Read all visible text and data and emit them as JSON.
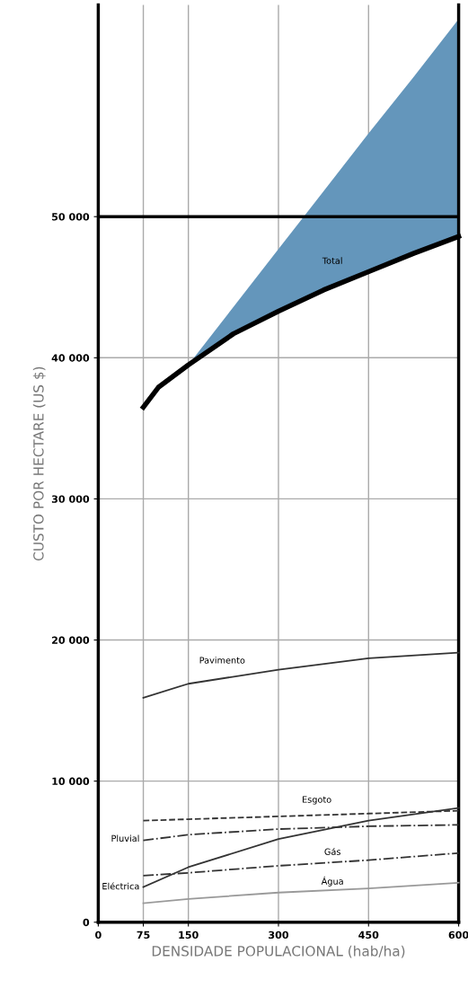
{
  "chart_data": {
    "type": "line",
    "xlabel": "DENSIDADE POPULACIONAL (hab/ha)",
    "ylabel": "CUSTO POR HECTARE (US $)",
    "xlim": [
      0,
      600
    ],
    "xticks": [
      0,
      75,
      150,
      300,
      450,
      600
    ],
    "ylim": [
      0,
      65000
    ],
    "yticks": [
      {
        "value": 0,
        "label": "0"
      },
      {
        "value": 10000,
        "label": "10 000"
      },
      {
        "value": 20000,
        "label": "20 000"
      },
      {
        "value": 30000,
        "label": "30 000"
      },
      {
        "value": 40000,
        "label": "40 000"
      },
      {
        "value": 50000,
        "label": "50 000"
      }
    ],
    "grid": true,
    "marker": "none",
    "series": [
      {
        "type": "area",
        "color": "#6496bb",
        "x": [
          150,
          225,
          300,
          375,
          450,
          525,
          600
        ],
        "values": [
          39500,
          43600,
          47700,
          51800,
          55900,
          59900,
          64000
        ]
      },
      {
        "name": "Total",
        "color": "#000000",
        "line_style": "solid",
        "x": [
          75,
          100,
          150,
          225,
          300,
          375,
          450,
          525,
          600
        ],
        "values": [
          36500,
          37900,
          39500,
          41700,
          43300,
          44800,
          46100,
          47400,
          48600
        ]
      },
      {
        "name": "Pavimento",
        "color": "#333333",
        "line_style": "solid",
        "x": [
          75,
          150,
          300,
          450,
          600
        ],
        "values": [
          15900,
          16900,
          17900,
          18700,
          19100
        ]
      },
      {
        "name": "Esgoto",
        "color": "#333333",
        "line_style": "dashed",
        "x": [
          75,
          150,
          300,
          450,
          600
        ],
        "values": [
          7200,
          7300,
          7500,
          7700,
          7900
        ]
      },
      {
        "name": "Pluvial",
        "color": "#333333",
        "line_style": "dashdot",
        "x": [
          75,
          150,
          300,
          450,
          600
        ],
        "values": [
          5800,
          6200,
          6600,
          6800,
          6900
        ]
      },
      {
        "name": "Eléctrica",
        "color": "#333333",
        "line_style": "solid",
        "x": [
          75,
          150,
          300,
          450,
          600
        ],
        "values": [
          2500,
          3900,
          5900,
          7200,
          8100
        ]
      },
      {
        "name": "Gás",
        "color": "#333333",
        "line_style": "dashdot",
        "x": [
          75,
          150,
          300,
          450,
          600
        ],
        "values": [
          3300,
          3500,
          4000,
          4400,
          4900
        ]
      },
      {
        "name": "Água",
        "color": "#999999",
        "line_style": "solid",
        "x": [
          75,
          150,
          300,
          450,
          600
        ],
        "values": [
          1350,
          1650,
          2100,
          2400,
          2800
        ]
      }
    ],
    "ref_lines": [
      {
        "axis": "y",
        "value": 50000,
        "color": "#000000",
        "line_style": "solid"
      }
    ]
  }
}
